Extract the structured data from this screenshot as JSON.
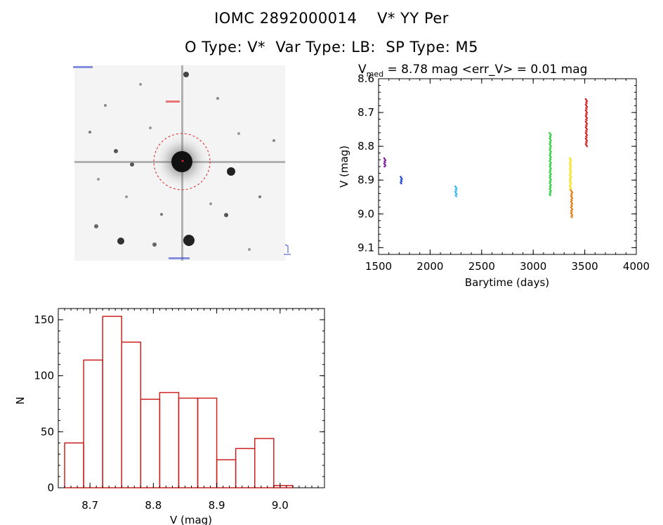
{
  "header": {
    "line1": "IOMC 2892000014    V* YY Per",
    "line2": "O Type: V*  Var Type: LB:  SP Type: M5"
  },
  "image_panel": {
    "corner_labels": [
      "",
      "",
      "",
      ""
    ]
  },
  "chart_data": [
    {
      "type": "scatter",
      "title": "V_med = 8.78 mag <err_V> = 0.01 mag",
      "title_parts": {
        "v": "V",
        "sub": "med",
        "rest": " = 8.78 mag <err_V> = 0.01 mag"
      },
      "xlabel": "Barytime (days)",
      "ylabel": "V (mag)",
      "xlim": [
        1500,
        4000
      ],
      "ylim": [
        9.12,
        8.6
      ],
      "y_inverted": true,
      "xticks": [
        1500,
        2000,
        2500,
        3000,
        3500,
        4000
      ],
      "xtick_labels": [
        "1500",
        "2000",
        "2500",
        "3000",
        "3500",
        "4000"
      ],
      "yticks": [
        8.6,
        8.7,
        8.8,
        8.9,
        9.0,
        9.1
      ],
      "ytick_labels": [
        "8.6",
        "8.7",
        "8.8",
        "8.9",
        "9.0",
        "9.1"
      ],
      "series": [
        {
          "color": "#7b1fa2",
          "x": 1560,
          "y_start": 8.835,
          "y_end": 8.86
        },
        {
          "color": "#1a3fd6",
          "x": 1720,
          "y_start": 8.89,
          "y_end": 8.91
        },
        {
          "color": "#29b6f6",
          "x": 2250,
          "y_start": 8.918,
          "y_end": 8.948
        },
        {
          "color": "#2ecc40",
          "x": 3165,
          "y_start": 8.76,
          "y_end": 8.945
        },
        {
          "color": "#f5e11a",
          "x": 3360,
          "y_start": 8.835,
          "y_end": 8.93
        },
        {
          "color": "#e07b10",
          "x": 3372,
          "y_start": 8.93,
          "y_end": 9.01
        },
        {
          "color": "#d62020",
          "x": 3515,
          "y_start": 8.66,
          "y_end": 8.8
        }
      ]
    },
    {
      "type": "bar",
      "title": "",
      "xlabel": "V (mag)",
      "ylabel": "N",
      "xlim": [
        8.65,
        9.07
      ],
      "ylim": [
        0,
        160
      ],
      "bin_width": 0.03,
      "bin_starts": [
        8.66,
        8.69,
        8.72,
        8.75,
        8.78,
        8.81,
        8.84,
        8.87,
        8.9,
        8.93,
        8.96,
        8.99
      ],
      "values": [
        40,
        114,
        153,
        130,
        79,
        85,
        80,
        80,
        25,
        35,
        44,
        2
      ],
      "xticks": [
        8.7,
        8.8,
        8.9,
        9.0
      ],
      "xtick_labels": [
        "8.7",
        "8.8",
        "8.9",
        "9.0"
      ],
      "yticks": [
        0,
        50,
        100,
        150
      ],
      "ytick_labels": [
        "0",
        "50",
        "100",
        "150"
      ],
      "bar_color": "#cc2222"
    }
  ]
}
